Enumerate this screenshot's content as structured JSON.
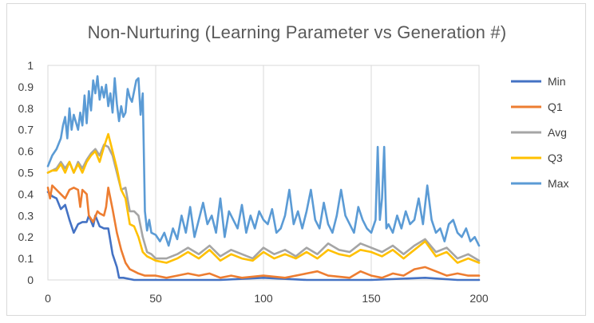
{
  "chart_data": {
    "type": "line",
    "title": "Non-Nurturing (Learning Parameter vs Generation #)",
    "xlabel": "",
    "ylabel": "",
    "xlim": [
      0,
      200
    ],
    "ylim": [
      0,
      1
    ],
    "xticks": [
      "0",
      "50",
      "100",
      "150",
      "200"
    ],
    "yticks": [
      "0",
      "0.1",
      "0.2",
      "0.3",
      "0.4",
      "0.5",
      "0.6",
      "0.7",
      "0.8",
      "0.9",
      "1"
    ],
    "vertical_gridlines": true,
    "legend_position": "right",
    "series": [
      {
        "name": "Min",
        "color": "#4472C4",
        "points": [
          [
            0,
            0.41
          ],
          [
            2,
            0.39
          ],
          [
            4,
            0.38
          ],
          [
            6,
            0.33
          ],
          [
            8,
            0.35
          ],
          [
            10,
            0.28
          ],
          [
            12,
            0.22
          ],
          [
            14,
            0.26
          ],
          [
            16,
            0.27
          ],
          [
            18,
            0.27
          ],
          [
            19,
            0.3
          ],
          [
            21,
            0.25
          ],
          [
            22,
            0.3
          ],
          [
            24,
            0.25
          ],
          [
            26,
            0.24
          ],
          [
            28,
            0.24
          ],
          [
            30,
            0.12
          ],
          [
            32,
            0.06
          ],
          [
            33,
            0.01
          ],
          [
            35,
            0.01
          ],
          [
            40,
            0.0
          ],
          [
            50,
            0.0
          ],
          [
            80,
            0.0
          ],
          [
            100,
            0.01
          ],
          [
            120,
            0.0
          ],
          [
            150,
            0.0
          ],
          [
            175,
            0.01
          ],
          [
            190,
            0.0
          ],
          [
            200,
            0.0
          ]
        ]
      },
      {
        "name": "Q1",
        "color": "#ED7D31",
        "points": [
          [
            0,
            0.43
          ],
          [
            1,
            0.38
          ],
          [
            2,
            0.44
          ],
          [
            4,
            0.42
          ],
          [
            6,
            0.4
          ],
          [
            8,
            0.38
          ],
          [
            10,
            0.42
          ],
          [
            12,
            0.43
          ],
          [
            14,
            0.42
          ],
          [
            15,
            0.34
          ],
          [
            16,
            0.42
          ],
          [
            18,
            0.4
          ],
          [
            19,
            0.3
          ],
          [
            21,
            0.27
          ],
          [
            23,
            0.32
          ],
          [
            24,
            0.31
          ],
          [
            26,
            0.3
          ],
          [
            27,
            0.34
          ],
          [
            28,
            0.43
          ],
          [
            30,
            0.33
          ],
          [
            32,
            0.22
          ],
          [
            34,
            0.14
          ],
          [
            36,
            0.08
          ],
          [
            38,
            0.05
          ],
          [
            40,
            0.04
          ],
          [
            42,
            0.03
          ],
          [
            45,
            0.02
          ],
          [
            50,
            0.02
          ],
          [
            55,
            0.01
          ],
          [
            60,
            0.02
          ],
          [
            65,
            0.03
          ],
          [
            70,
            0.02
          ],
          [
            75,
            0.03
          ],
          [
            80,
            0.01
          ],
          [
            85,
            0.02
          ],
          [
            90,
            0.01
          ],
          [
            100,
            0.02
          ],
          [
            110,
            0.01
          ],
          [
            120,
            0.03
          ],
          [
            125,
            0.04
          ],
          [
            130,
            0.02
          ],
          [
            140,
            0.01
          ],
          [
            145,
            0.04
          ],
          [
            150,
            0.02
          ],
          [
            155,
            0.01
          ],
          [
            160,
            0.03
          ],
          [
            165,
            0.02
          ],
          [
            170,
            0.05
          ],
          [
            175,
            0.06
          ],
          [
            180,
            0.04
          ],
          [
            185,
            0.02
          ],
          [
            190,
            0.03
          ],
          [
            195,
            0.02
          ],
          [
            200,
            0.02
          ]
        ]
      },
      {
        "name": "Avg",
        "color": "#A5A5A5",
        "points": [
          [
            0,
            0.5
          ],
          [
            2,
            0.51
          ],
          [
            4,
            0.52
          ],
          [
            6,
            0.55
          ],
          [
            8,
            0.52
          ],
          [
            10,
            0.55
          ],
          [
            12,
            0.5
          ],
          [
            14,
            0.55
          ],
          [
            16,
            0.52
          ],
          [
            18,
            0.56
          ],
          [
            20,
            0.59
          ],
          [
            22,
            0.61
          ],
          [
            24,
            0.58
          ],
          [
            26,
            0.63
          ],
          [
            28,
            0.62
          ],
          [
            30,
            0.58
          ],
          [
            32,
            0.5
          ],
          [
            34,
            0.42
          ],
          [
            36,
            0.43
          ],
          [
            38,
            0.32
          ],
          [
            40,
            0.32
          ],
          [
            42,
            0.3
          ],
          [
            44,
            0.2
          ],
          [
            46,
            0.13
          ],
          [
            48,
            0.12
          ],
          [
            50,
            0.1
          ],
          [
            55,
            0.1
          ],
          [
            60,
            0.12
          ],
          [
            65,
            0.15
          ],
          [
            70,
            0.12
          ],
          [
            75,
            0.16
          ],
          [
            80,
            0.11
          ],
          [
            85,
            0.14
          ],
          [
            90,
            0.12
          ],
          [
            95,
            0.1
          ],
          [
            100,
            0.15
          ],
          [
            105,
            0.12
          ],
          [
            110,
            0.14
          ],
          [
            115,
            0.11
          ],
          [
            120,
            0.15
          ],
          [
            125,
            0.12
          ],
          [
            130,
            0.17
          ],
          [
            135,
            0.14
          ],
          [
            140,
            0.13
          ],
          [
            145,
            0.17
          ],
          [
            150,
            0.15
          ],
          [
            155,
            0.13
          ],
          [
            160,
            0.16
          ],
          [
            165,
            0.12
          ],
          [
            170,
            0.16
          ],
          [
            175,
            0.19
          ],
          [
            180,
            0.13
          ],
          [
            185,
            0.15
          ],
          [
            190,
            0.1
          ],
          [
            195,
            0.12
          ],
          [
            200,
            0.09
          ]
        ]
      },
      {
        "name": "Q3",
        "color": "#FFC000",
        "points": [
          [
            0,
            0.5
          ],
          [
            2,
            0.51
          ],
          [
            4,
            0.51
          ],
          [
            6,
            0.54
          ],
          [
            8,
            0.5
          ],
          [
            10,
            0.55
          ],
          [
            12,
            0.5
          ],
          [
            14,
            0.54
          ],
          [
            16,
            0.5
          ],
          [
            18,
            0.55
          ],
          [
            20,
            0.58
          ],
          [
            22,
            0.6
          ],
          [
            24,
            0.55
          ],
          [
            26,
            0.62
          ],
          [
            28,
            0.68
          ],
          [
            30,
            0.6
          ],
          [
            32,
            0.52
          ],
          [
            34,
            0.42
          ],
          [
            36,
            0.38
          ],
          [
            38,
            0.26
          ],
          [
            40,
            0.25
          ],
          [
            42,
            0.2
          ],
          [
            44,
            0.13
          ],
          [
            46,
            0.11
          ],
          [
            48,
            0.1
          ],
          [
            50,
            0.09
          ],
          [
            55,
            0.08
          ],
          [
            60,
            0.1
          ],
          [
            65,
            0.13
          ],
          [
            70,
            0.1
          ],
          [
            75,
            0.14
          ],
          [
            80,
            0.09
          ],
          [
            85,
            0.12
          ],
          [
            90,
            0.1
          ],
          [
            95,
            0.09
          ],
          [
            100,
            0.13
          ],
          [
            105,
            0.1
          ],
          [
            110,
            0.12
          ],
          [
            115,
            0.1
          ],
          [
            120,
            0.13
          ],
          [
            125,
            0.1
          ],
          [
            130,
            0.14
          ],
          [
            135,
            0.12
          ],
          [
            140,
            0.11
          ],
          [
            145,
            0.14
          ],
          [
            150,
            0.13
          ],
          [
            155,
            0.11
          ],
          [
            160,
            0.14
          ],
          [
            165,
            0.1
          ],
          [
            170,
            0.14
          ],
          [
            175,
            0.18
          ],
          [
            180,
            0.11
          ],
          [
            185,
            0.13
          ],
          [
            190,
            0.08
          ],
          [
            195,
            0.1
          ],
          [
            200,
            0.08
          ]
        ]
      },
      {
        "name": "Max",
        "color": "#5B9BD5",
        "points": [
          [
            0,
            0.53
          ],
          [
            2,
            0.58
          ],
          [
            4,
            0.61
          ],
          [
            6,
            0.66
          ],
          [
            7,
            0.72
          ],
          [
            8,
            0.76
          ],
          [
            9,
            0.66
          ],
          [
            10,
            0.8
          ],
          [
            11,
            0.7
          ],
          [
            12,
            0.77
          ],
          [
            14,
            0.7
          ],
          [
            15,
            0.78
          ],
          [
            16,
            0.72
          ],
          [
            17,
            0.86
          ],
          [
            18,
            0.73
          ],
          [
            19,
            0.88
          ],
          [
            20,
            0.79
          ],
          [
            21,
            0.93
          ],
          [
            22,
            0.87
          ],
          [
            23,
            0.95
          ],
          [
            24,
            0.84
          ],
          [
            25,
            0.9
          ],
          [
            26,
            0.85
          ],
          [
            27,
            0.91
          ],
          [
            28,
            0.81
          ],
          [
            29,
            0.87
          ],
          [
            30,
            0.78
          ],
          [
            31,
            0.94
          ],
          [
            32,
            0.82
          ],
          [
            33,
            0.74
          ],
          [
            34,
            0.81
          ],
          [
            35,
            0.76
          ],
          [
            36,
            0.78
          ],
          [
            37,
            0.89
          ],
          [
            38,
            0.85
          ],
          [
            39,
            0.83
          ],
          [
            40,
            0.88
          ],
          [
            41,
            0.93
          ],
          [
            42,
            0.94
          ],
          [
            43,
            0.77
          ],
          [
            44,
            0.87
          ],
          [
            45,
            0.32
          ],
          [
            46,
            0.23
          ],
          [
            47,
            0.28
          ],
          [
            48,
            0.22
          ],
          [
            50,
            0.21
          ],
          [
            52,
            0.18
          ],
          [
            54,
            0.22
          ],
          [
            56,
            0.16
          ],
          [
            58,
            0.24
          ],
          [
            60,
            0.19
          ],
          [
            62,
            0.3
          ],
          [
            64,
            0.22
          ],
          [
            66,
            0.34
          ],
          [
            68,
            0.2
          ],
          [
            70,
            0.28
          ],
          [
            72,
            0.36
          ],
          [
            74,
            0.26
          ],
          [
            76,
            0.3
          ],
          [
            78,
            0.22
          ],
          [
            80,
            0.38
          ],
          [
            82,
            0.2
          ],
          [
            84,
            0.32
          ],
          [
            86,
            0.28
          ],
          [
            88,
            0.24
          ],
          [
            90,
            0.35
          ],
          [
            92,
            0.22
          ],
          [
            94,
            0.3
          ],
          [
            96,
            0.24
          ],
          [
            98,
            0.32
          ],
          [
            100,
            0.28
          ],
          [
            102,
            0.26
          ],
          [
            104,
            0.33
          ],
          [
            106,
            0.22
          ],
          [
            108,
            0.24
          ],
          [
            110,
            0.3
          ],
          [
            112,
            0.42
          ],
          [
            114,
            0.26
          ],
          [
            116,
            0.32
          ],
          [
            118,
            0.24
          ],
          [
            120,
            0.32
          ],
          [
            122,
            0.42
          ],
          [
            124,
            0.28
          ],
          [
            126,
            0.24
          ],
          [
            128,
            0.36
          ],
          [
            130,
            0.26
          ],
          [
            132,
            0.22
          ],
          [
            134,
            0.3
          ],
          [
            136,
            0.42
          ],
          [
            138,
            0.3
          ],
          [
            140,
            0.26
          ],
          [
            142,
            0.22
          ],
          [
            144,
            0.34
          ],
          [
            146,
            0.28
          ],
          [
            148,
            0.24
          ],
          [
            150,
            0.22
          ],
          [
            152,
            0.28
          ],
          [
            153,
            0.62
          ],
          [
            154,
            0.28
          ],
          [
            155,
            0.38
          ],
          [
            156,
            0.62
          ],
          [
            157,
            0.24
          ],
          [
            158,
            0.26
          ],
          [
            160,
            0.22
          ],
          [
            162,
            0.3
          ],
          [
            164,
            0.24
          ],
          [
            166,
            0.32
          ],
          [
            168,
            0.26
          ],
          [
            170,
            0.28
          ],
          [
            172,
            0.38
          ],
          [
            174,
            0.26
          ],
          [
            176,
            0.44
          ],
          [
            178,
            0.28
          ],
          [
            180,
            0.22
          ],
          [
            182,
            0.24
          ],
          [
            184,
            0.18
          ],
          [
            186,
            0.26
          ],
          [
            188,
            0.28
          ],
          [
            190,
            0.22
          ],
          [
            192,
            0.2
          ],
          [
            194,
            0.24
          ],
          [
            196,
            0.18
          ],
          [
            198,
            0.2
          ],
          [
            200,
            0.16
          ]
        ]
      }
    ]
  }
}
